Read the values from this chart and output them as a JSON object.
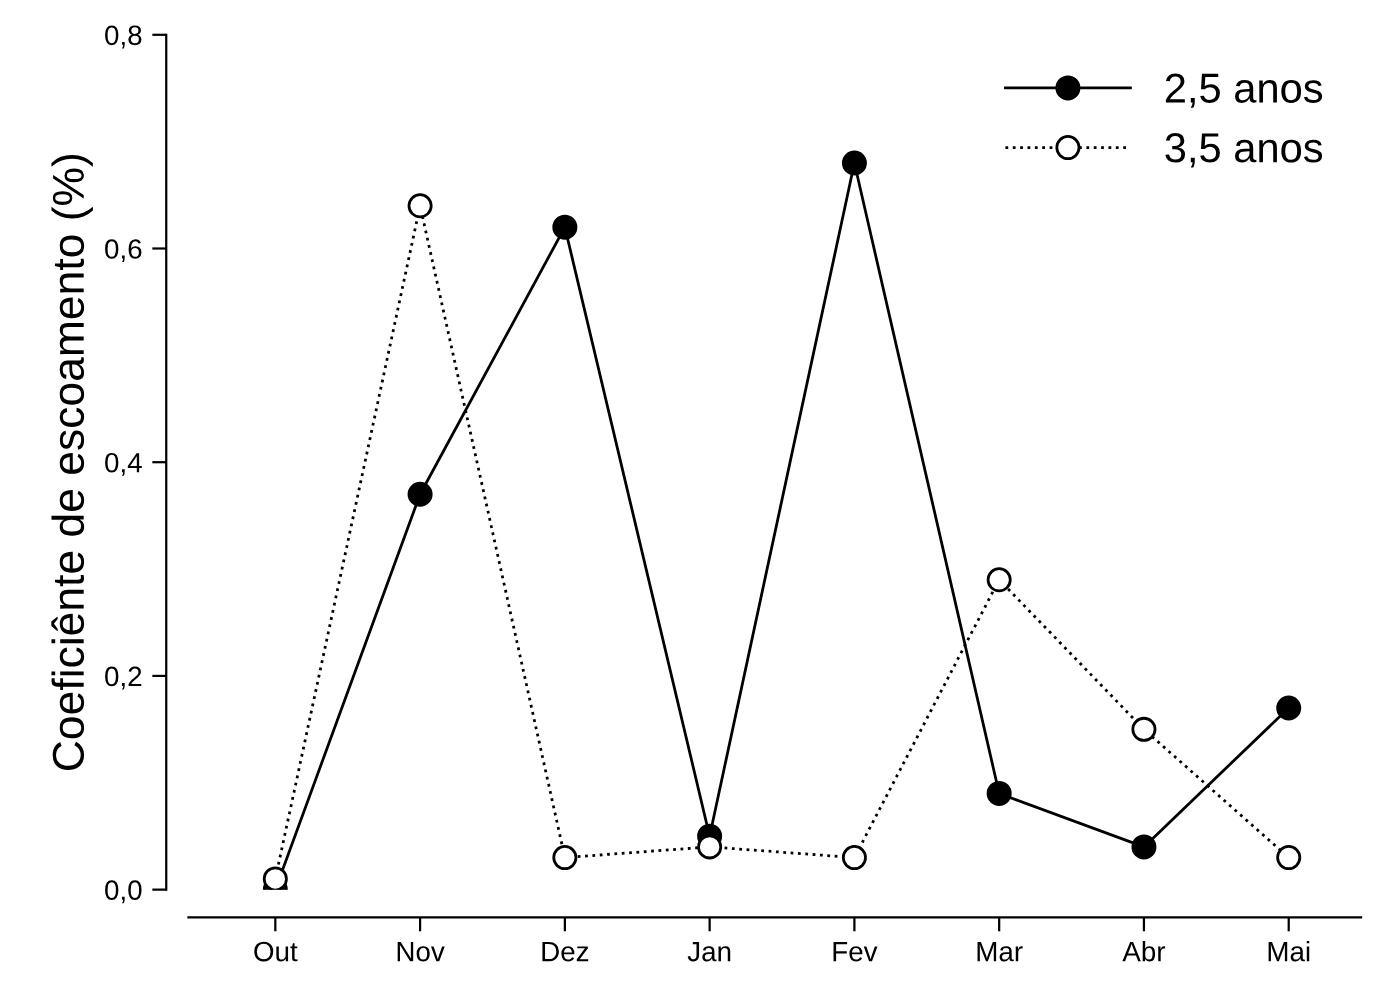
{
  "chart_data": {
    "type": "line",
    "ylabel": "Coeficiênte de escoamento (%)",
    "categories": [
      "Out",
      "Nov",
      "Dez",
      "Jan",
      "Fev",
      "Mar",
      "Abr",
      "Mai"
    ],
    "series": [
      {
        "name": "2,5 anos",
        "color": "#000000",
        "line_style": "solid",
        "values": [
          0.0,
          0.37,
          0.62,
          0.05,
          0.68,
          0.09,
          0.04,
          0.17
        ]
      },
      {
        "name": "3,5 anos",
        "color": "#000000",
        "line_style": "dotted",
        "values": [
          0.01,
          0.64,
          0.03,
          0.04,
          0.03,
          0.29,
          0.15,
          0.03
        ]
      }
    ],
    "ylim": [
      0,
      0.8
    ],
    "yticks": [
      {
        "value": 0,
        "label": "0,0"
      },
      {
        "value": 0.2,
        "label": "0,2"
      },
      {
        "value": 0.4,
        "label": "0,4"
      },
      {
        "value": 0.6,
        "label": "0,6"
      },
      {
        "value": 0.8,
        "label": "0,8"
      }
    ],
    "marker": "circle",
    "legend": "top right",
    "grid": false
  }
}
